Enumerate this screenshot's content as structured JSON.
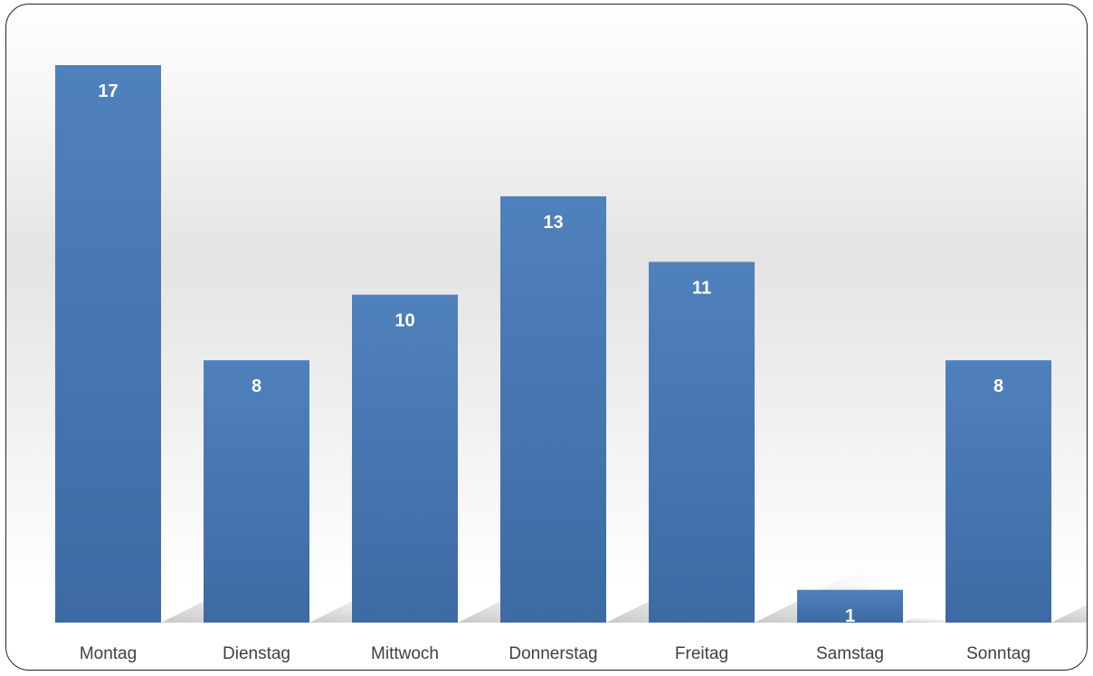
{
  "chart_data": {
    "type": "bar",
    "categories": [
      "Montag",
      "Dienstag",
      "Mittwoch",
      "Donnerstag",
      "Freitag",
      "Samstag",
      "Sonntag"
    ],
    "values": [
      17,
      8,
      10,
      13,
      11,
      1,
      8
    ],
    "title": "",
    "xlabel": "",
    "ylabel": "",
    "ylim": [
      0,
      17
    ],
    "grid": false,
    "data_labels": true,
    "legend": "none",
    "bar_color": "#4a7ab8",
    "bar_color_light": "#4f81bd",
    "bar_color_dark": "#3d6aa3",
    "label_color": "#ffffff",
    "axis_label_color": "#404040"
  }
}
